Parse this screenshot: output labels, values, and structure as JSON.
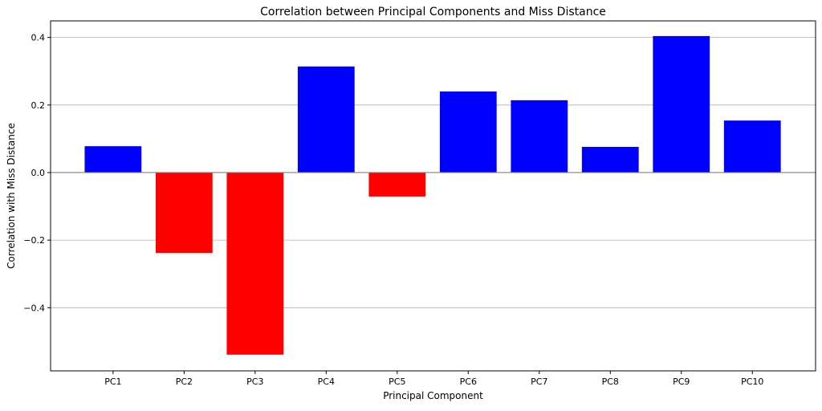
{
  "chart_data": {
    "type": "bar",
    "title": "Correlation between Principal Components and Miss Distance",
    "xlabel": "Principal Component",
    "ylabel": "Correlation with Miss Distance",
    "categories": [
      "PC1",
      "PC2",
      "PC3",
      "PC4",
      "PC5",
      "PC6",
      "PC7",
      "PC8",
      "PC9",
      "PC10"
    ],
    "values": [
      0.078,
      -0.238,
      -0.539,
      0.314,
      -0.071,
      0.24,
      0.214,
      0.076,
      0.404,
      0.154
    ],
    "ylim": [
      -0.587,
      0.449
    ],
    "yticks": [
      -0.4,
      -0.2,
      0.0,
      0.2,
      0.4
    ],
    "ytick_labels": [
      "−0.4",
      "−0.2",
      "0.0",
      "0.2",
      "0.4"
    ],
    "grid": "y",
    "zero_line": true,
    "colors": {
      "positive": "#0000ff",
      "negative": "#ff0000",
      "grid": "#b0b0b0",
      "zero_line": "#808080"
    }
  }
}
